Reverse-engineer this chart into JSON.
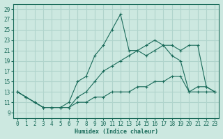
{
  "xlabel": "Humidex (Indice chaleur)",
  "bg_color": "#cce8e0",
  "line_color": "#1a6b5a",
  "grid_color": "#b0d4cc",
  "xlim": [
    -0.5,
    23.5
  ],
  "ylim": [
    8,
    30
  ],
  "yticks": [
    9,
    11,
    13,
    15,
    17,
    19,
    21,
    23,
    25,
    27,
    29
  ],
  "xticks": [
    0,
    1,
    2,
    3,
    4,
    5,
    6,
    7,
    8,
    9,
    10,
    11,
    12,
    13,
    14,
    15,
    16,
    17,
    18,
    19,
    20,
    21,
    22,
    23
  ],
  "series": [
    {
      "x": [
        0,
        1,
        2,
        3,
        4,
        5,
        6,
        7,
        8,
        9,
        10,
        11,
        12,
        13,
        14,
        15,
        16,
        17,
        18,
        19,
        20,
        21,
        22,
        23
      ],
      "y": [
        13,
        12,
        11,
        10,
        10,
        10,
        10,
        11,
        11,
        12,
        12,
        13,
        13,
        13,
        14,
        14,
        15,
        15,
        16,
        16,
        13,
        13,
        13,
        13
      ]
    },
    {
      "x": [
        0,
        1,
        2,
        3,
        4,
        5,
        6,
        7,
        8,
        9,
        10,
        11,
        12,
        13,
        14,
        15,
        16,
        17,
        18,
        19,
        20,
        21,
        22,
        23
      ],
      "y": [
        13,
        12,
        11,
        10,
        10,
        10,
        11,
        15,
        16,
        20,
        22,
        25,
        28,
        21,
        21,
        20,
        21,
        22,
        20,
        19,
        13,
        14,
        14,
        13
      ]
    },
    {
      "x": [
        0,
        1,
        2,
        3,
        4,
        5,
        6,
        7,
        8,
        9,
        10,
        11,
        12,
        13,
        14,
        15,
        16,
        17,
        18,
        19,
        20,
        21,
        22,
        23
      ],
      "y": [
        13,
        12,
        11,
        10,
        10,
        10,
        10,
        12,
        13,
        15,
        17,
        18,
        19,
        20,
        21,
        22,
        23,
        22,
        22,
        21,
        22,
        22,
        14,
        13
      ]
    }
  ]
}
